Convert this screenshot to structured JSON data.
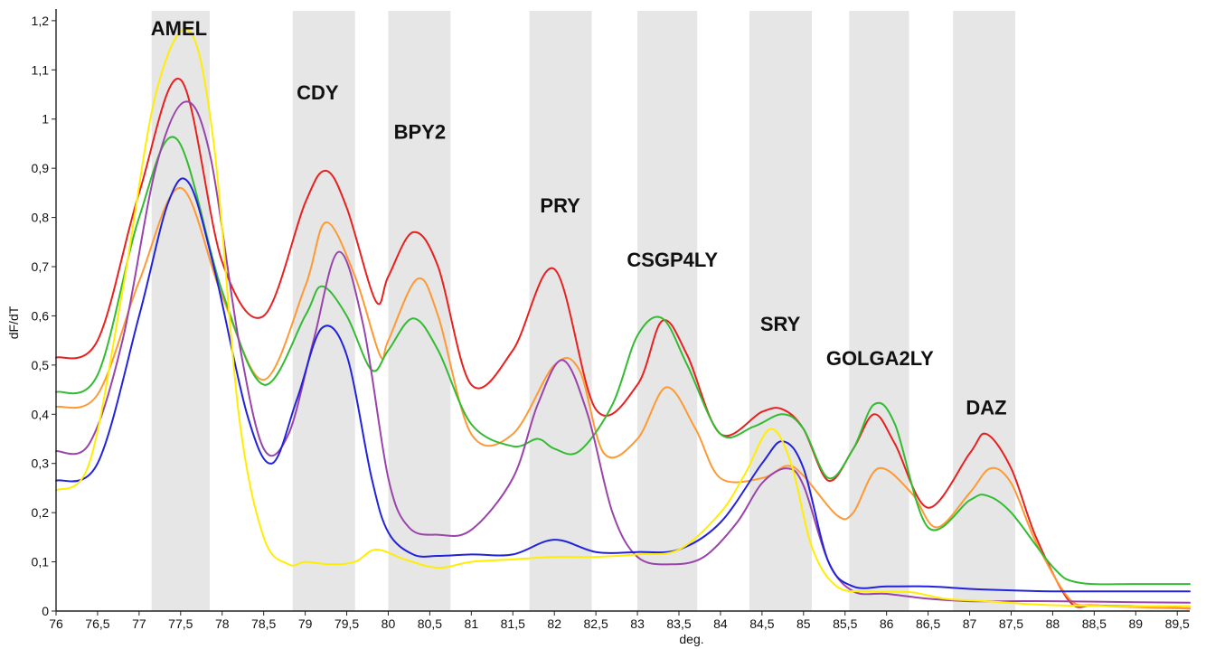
{
  "chart_data": {
    "type": "line",
    "xlabel": "deg.",
    "ylabel": "dF/dT",
    "xlim": [
      76,
      89.65
    ],
    "ylim": [
      0,
      1.22
    ],
    "x_ticks": [
      76,
      76.5,
      77,
      77.5,
      78,
      78.5,
      79,
      79.5,
      80,
      80.5,
      81,
      81.5,
      82,
      82.5,
      83,
      83.5,
      84,
      84.5,
      85,
      85.5,
      86,
      86.5,
      87,
      87.5,
      88,
      88.5,
      89,
      89.5
    ],
    "x_tick_labels": [
      "76",
      "76,5",
      "77",
      "77,5",
      "78",
      "78,5",
      "79",
      "79,5",
      "80",
      "80,5",
      "81",
      "81,5",
      "82",
      "82,5",
      "83",
      "83,5",
      "84",
      "84,5",
      "85",
      "85,5",
      "86",
      "86,5",
      "87",
      "87,5",
      "88",
      "88,5",
      "89",
      "89,5"
    ],
    "y_ticks": [
      0,
      0.1,
      0.2,
      0.3,
      0.4,
      0.5,
      0.6,
      0.7,
      0.8,
      0.9,
      1,
      1.1,
      1.2
    ],
    "y_tick_labels": [
      "0",
      "0,1",
      "0,2",
      "0,3",
      "0,4",
      "0,5",
      "0,6",
      "0,7",
      "0,8",
      "0,9",
      "1",
      "1,1",
      "1,2"
    ],
    "grid": false,
    "regions": [
      {
        "label": "AMEL",
        "from": 77.15,
        "to": 77.85,
        "label_x": 77.48,
        "label_y": 1.17
      },
      {
        "label": "CDY",
        "from": 78.85,
        "to": 79.6,
        "label_x": 79.15,
        "label_y": 1.04
      },
      {
        "label": "BPY2",
        "from": 80.0,
        "to": 80.75,
        "label_x": 80.38,
        "label_y": 0.96
      },
      {
        "label": "PRY",
        "from": 81.7,
        "to": 82.45,
        "label_x": 82.07,
        "label_y": 0.81
      },
      {
        "label": "CSGP4LY",
        "from": 83.0,
        "to": 83.72,
        "label_x": 83.42,
        "label_y": 0.7
      },
      {
        "label": "SRY",
        "from": 84.35,
        "to": 85.1,
        "label_x": 84.72,
        "label_y": 0.57
      },
      {
        "label": "GOLGA2LY",
        "from": 85.55,
        "to": 86.27,
        "label_x": 85.92,
        "label_y": 0.5
      },
      {
        "label": "DAZ",
        "from": 86.8,
        "to": 87.55,
        "label_x": 87.2,
        "label_y": 0.4
      }
    ],
    "series": [
      {
        "color": "#e82020",
        "x": [
          76,
          76.5,
          77,
          77.5,
          78,
          78.5,
          79,
          79.25,
          79.5,
          79.85,
          80,
          80.3,
          80.6,
          81,
          81.5,
          82,
          82.5,
          83,
          83.3,
          83.6,
          84,
          84.5,
          84.75,
          85,
          85.3,
          85.6,
          85.85,
          86.1,
          86.5,
          87,
          87.2,
          87.5,
          87.8,
          88.2,
          88.5,
          89,
          89.65
        ],
        "y": [
          0.515,
          0.55,
          0.85,
          1.08,
          0.71,
          0.6,
          0.83,
          0.895,
          0.82,
          0.63,
          0.68,
          0.77,
          0.7,
          0.46,
          0.53,
          0.695,
          0.41,
          0.46,
          0.59,
          0.52,
          0.36,
          0.405,
          0.41,
          0.37,
          0.265,
          0.33,
          0.4,
          0.34,
          0.21,
          0.32,
          0.36,
          0.29,
          0.15,
          0.02,
          0.012,
          0.01,
          0.005
        ]
      },
      {
        "color": "#ff9933",
        "x": [
          76,
          76.5,
          77,
          77.5,
          78,
          78.5,
          79,
          79.25,
          79.6,
          79.9,
          80,
          80.35,
          80.6,
          81,
          81.5,
          82,
          82.3,
          82.6,
          83,
          83.35,
          83.7,
          84,
          84.5,
          84.8,
          85,
          85.4,
          85.6,
          85.9,
          86.3,
          86.6,
          87,
          87.25,
          87.5,
          87.8,
          88.2,
          88.5,
          89,
          89.65
        ],
        "y": [
          0.415,
          0.44,
          0.67,
          0.86,
          0.64,
          0.47,
          0.66,
          0.79,
          0.68,
          0.52,
          0.55,
          0.675,
          0.6,
          0.36,
          0.36,
          0.5,
          0.49,
          0.32,
          0.35,
          0.455,
          0.37,
          0.27,
          0.27,
          0.295,
          0.275,
          0.195,
          0.2,
          0.29,
          0.24,
          0.17,
          0.24,
          0.29,
          0.26,
          0.14,
          0.025,
          0.012,
          0.008,
          0.005
        ]
      },
      {
        "color": "#33bb33",
        "x": [
          76,
          76.5,
          77,
          77.45,
          78,
          78.5,
          79,
          79.2,
          79.5,
          79.8,
          80,
          80.3,
          80.6,
          81,
          81.5,
          81.8,
          82,
          82.3,
          82.7,
          83,
          83.3,
          83.6,
          84,
          84.4,
          84.75,
          85,
          85.3,
          85.6,
          85.85,
          86.1,
          86.5,
          87,
          87.2,
          87.5,
          88,
          88.3,
          89,
          89.65
        ],
        "y": [
          0.445,
          0.48,
          0.8,
          0.96,
          0.65,
          0.46,
          0.6,
          0.66,
          0.6,
          0.49,
          0.53,
          0.595,
          0.53,
          0.38,
          0.335,
          0.35,
          0.33,
          0.325,
          0.42,
          0.56,
          0.595,
          0.5,
          0.36,
          0.375,
          0.4,
          0.37,
          0.27,
          0.33,
          0.42,
          0.38,
          0.17,
          0.225,
          0.235,
          0.2,
          0.09,
          0.058,
          0.055,
          0.055
        ]
      },
      {
        "color": "#9944aa",
        "x": [
          76,
          76.4,
          76.8,
          77.2,
          77.55,
          77.85,
          78.2,
          78.5,
          78.8,
          79.1,
          79.4,
          79.7,
          80,
          80.25,
          80.6,
          81,
          81.5,
          81.8,
          82.1,
          82.4,
          82.7,
          83,
          83.4,
          83.8,
          84.2,
          84.5,
          84.8,
          85,
          85.3,
          85.6,
          86,
          86.5,
          87,
          87.5,
          88,
          89,
          89.65
        ],
        "y": [
          0.325,
          0.34,
          0.55,
          0.9,
          1.035,
          0.93,
          0.55,
          0.33,
          0.36,
          0.55,
          0.73,
          0.58,
          0.27,
          0.17,
          0.155,
          0.165,
          0.27,
          0.42,
          0.51,
          0.4,
          0.2,
          0.11,
          0.095,
          0.11,
          0.18,
          0.26,
          0.29,
          0.255,
          0.1,
          0.04,
          0.035,
          0.025,
          0.02,
          0.02,
          0.02,
          0.018,
          0.017
        ]
      },
      {
        "color": "#2222dd",
        "x": [
          76,
          76.5,
          77,
          77.35,
          77.6,
          77.9,
          78.3,
          78.6,
          78.9,
          79.2,
          79.5,
          79.8,
          80,
          80.3,
          80.6,
          81,
          81.5,
          82,
          82.5,
          83,
          83.5,
          84,
          84.5,
          84.75,
          85,
          85.3,
          85.6,
          86,
          86.5,
          87,
          87.5,
          88,
          89,
          89.65
        ],
        "y": [
          0.265,
          0.3,
          0.6,
          0.83,
          0.87,
          0.7,
          0.4,
          0.3,
          0.43,
          0.575,
          0.52,
          0.27,
          0.16,
          0.115,
          0.112,
          0.115,
          0.115,
          0.145,
          0.12,
          0.12,
          0.125,
          0.18,
          0.3,
          0.345,
          0.29,
          0.1,
          0.05,
          0.05,
          0.05,
          0.045,
          0.042,
          0.04,
          0.04,
          0.04
        ]
      },
      {
        "color": "#ffee00",
        "x": [
          76,
          76.4,
          76.8,
          77.2,
          77.6,
          77.9,
          78.2,
          78.5,
          78.8,
          79,
          79.3,
          79.6,
          79.85,
          80.2,
          80.6,
          81,
          81.5,
          82,
          82.5,
          83,
          83.5,
          84,
          84.3,
          84.6,
          84.85,
          85.1,
          85.4,
          85.8,
          86.3,
          86.7,
          87.2,
          88,
          89,
          89.65
        ],
        "y": [
          0.245,
          0.3,
          0.65,
          1.05,
          1.18,
          0.95,
          0.4,
          0.15,
          0.095,
          0.1,
          0.095,
          0.1,
          0.125,
          0.105,
          0.088,
          0.1,
          0.105,
          0.11,
          0.11,
          0.115,
          0.125,
          0.2,
          0.28,
          0.37,
          0.3,
          0.13,
          0.05,
          0.04,
          0.038,
          0.025,
          0.02,
          0.012,
          0.01,
          0.01
        ]
      }
    ]
  }
}
